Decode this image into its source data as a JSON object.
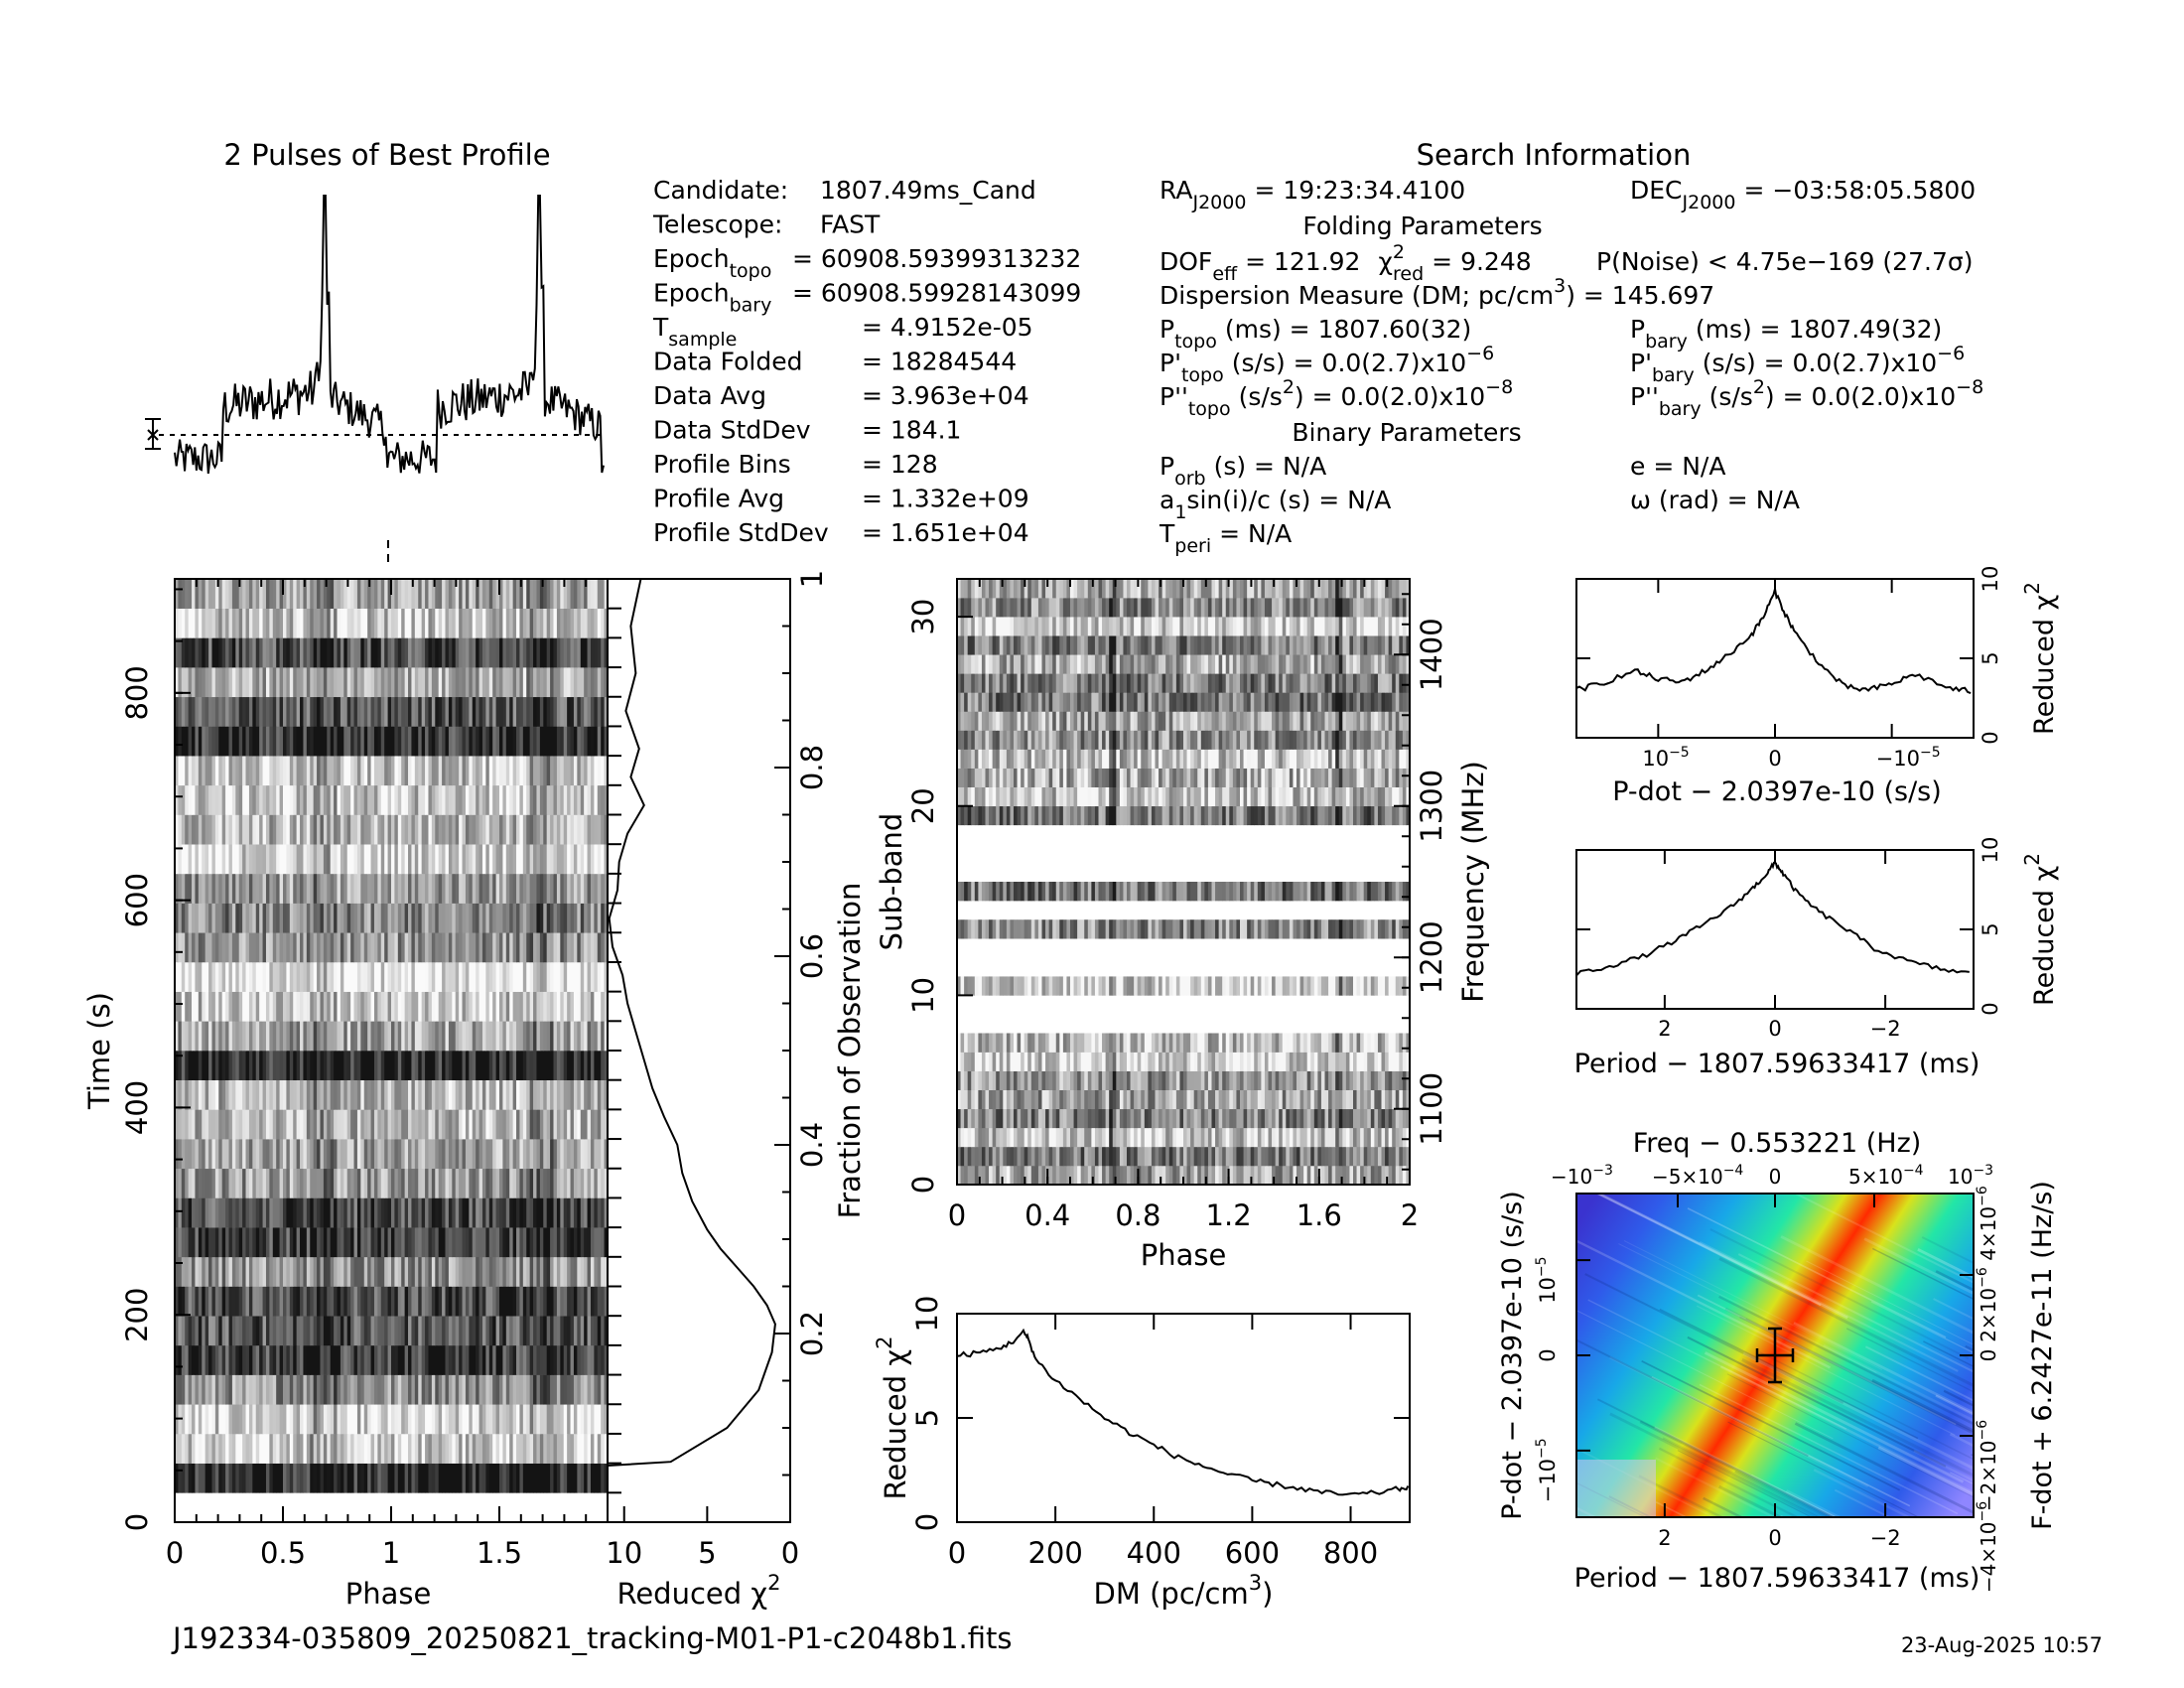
{
  "file_name": "J192334-035809_20250821_tracking-M01-P1-c2048b1.fits",
  "date_stamp": "23-Aug-2025 10:57",
  "colors": {
    "ink": "#000000",
    "background": "#ffffff"
  },
  "profile_panel": {
    "title": "2 Pulses of Best Profile"
  },
  "search_info": {
    "title": "Search Information",
    "left": [
      {
        "label": "Candidate:",
        "value": "1807.49ms_Cand"
      },
      {
        "label": "Telescope:",
        "value": "FAST"
      },
      {
        "label": "Epoch",
        "sub": "topo",
        "value": "= 60908.59399313232"
      },
      {
        "label": "Epoch",
        "sub": "bary",
        "value": "= 60908.59928143099"
      },
      {
        "label": "T",
        "sub": "sample",
        "value": "=   4.9152e-05"
      },
      {
        "label": "Data Folded",
        "value": "=   18284544"
      },
      {
        "label": "Data Avg",
        "value": "=   3.963e+04"
      },
      {
        "label": "Data StdDev",
        "value": "=   184.1"
      },
      {
        "label": "Profile Bins",
        "value": "=   128"
      },
      {
        "label": "Profile Avg",
        "value": "=   1.332e+09"
      },
      {
        "label": "Profile StdDev",
        "value": "=   1.651e+04"
      }
    ],
    "ra": "RA",
    "ra_sub": "J2000",
    "ra_value": "= 19:23:34.4100",
    "dec": "DEC",
    "dec_sub": "J2000",
    "dec_value": "= −03:58:05.5800",
    "folding_title": "Folding Parameters",
    "dof": "DOF",
    "dof_sub": "eff",
    "dof_value": "= 121.92",
    "chi": "χ",
    "chi_sup": "2",
    "chi_sub": "red",
    "chi_value": "= 9.248",
    "p_noise": "P(Noise) < 4.75e−169   (27.7σ)",
    "dm_line": "Dispersion Measure (DM; pc/cm",
    "dm_sup": "3",
    "dm_value": ") = 145.697",
    "p_topo": "P",
    "p_topo_sub": "topo",
    "p_topo_value": "(ms) =  1807.60(32)",
    "pd_topo": "P'",
    "pd_topo_sub": "topo",
    "pd_topo_value": "(s/s) = 0.0(2.7)x10",
    "pd_topo_exp": "−6",
    "pdd_topo": "P''",
    "pdd_topo_sub": "topo",
    "pdd_topo_value": "(s/s",
    "pdd_topo_sup": "2",
    "pdd_topo_value2": ") = 0.0(2.0)x10",
    "pdd_topo_exp": "−8",
    "p_bary": "P",
    "p_bary_sub": "bary",
    "p_bary_value": "(ms) =  1807.49(32)",
    "pd_bary": "P'",
    "pd_bary_sub": "bary",
    "pd_bary_value": "(s/s) = 0.0(2.7)x10",
    "pd_bary_exp": "−6",
    "pdd_bary": "P''",
    "pdd_bary_sub": "bary",
    "pdd_bary_value": "(s/s",
    "pdd_bary_sup": "2",
    "pdd_bary_value2": ") = 0.0(2.0)x10",
    "pdd_bary_exp": "−8",
    "binary_title": "Binary Parameters",
    "porb": "P",
    "porb_sub": "orb",
    "porb_value": "(s) = N/A",
    "a1": "a",
    "a1_sub": "1",
    "a1_value": "sin(i)/c (s) = N/A",
    "tperi": "T",
    "tperi_sub": "peri",
    "tperi_value": "= N/A",
    "ecc": "e = N/A",
    "omega": "ω (rad) = N/A"
  },
  "chart_data": [
    {
      "id": "profile",
      "type": "line",
      "title": "2 Pulses of Best Profile",
      "xlim": [
        0,
        2
      ],
      "ylim": [
        0,
        1
      ],
      "pulse_peaks_phase": [
        0.7,
        1.7
      ],
      "pulse_peak_level": 1.0,
      "baseline_level": 0.21,
      "offpulse_level": 0.12,
      "errorbar": true
    },
    {
      "id": "time-phase",
      "type": "heatmap",
      "xlabel": "Phase",
      "ylabel": "Time (s)",
      "xlim": [
        0,
        2
      ],
      "ylim": [
        0,
        910
      ],
      "x_ticks": [
        "0",
        "0.5",
        "1",
        "1.5"
      ],
      "y_ticks": [
        "0",
        "200",
        "400",
        "600",
        "800"
      ],
      "colormap": "grayscale",
      "n_intervals": 32
    },
    {
      "id": "chi-vs-time",
      "type": "line",
      "xlabel": "Reduced χ",
      "xlabel_sup": "2",
      "ylabel": "Fraction of Observation",
      "xlim": [
        11,
        0
      ],
      "ylim": [
        0,
        1
      ],
      "x_ticks": [
        "10",
        "5",
        "0"
      ],
      "y_ticks": [
        "0.2",
        "0.4",
        "0.6",
        "0.8",
        "1"
      ],
      "x": [
        11,
        7.2,
        3.8,
        1.9,
        1.1,
        0.9,
        1.4,
        2.2,
        3.2,
        4.2,
        5.0,
        5.9,
        6.5,
        6.8,
        7.6,
        8.3,
        8.8,
        9.3,
        9.8,
        10.1,
        10.7,
        10.9,
        10.4,
        10.3,
        9.8,
        8.8,
        9.6,
        9.1,
        9.9,
        9.3,
        9.6,
        9.0
      ],
      "y": [
        0.06,
        0.064,
        0.1,
        0.14,
        0.18,
        0.21,
        0.23,
        0.25,
        0.27,
        0.29,
        0.31,
        0.34,
        0.37,
        0.4,
        0.43,
        0.46,
        0.49,
        0.52,
        0.55,
        0.58,
        0.61,
        0.64,
        0.67,
        0.7,
        0.73,
        0.76,
        0.79,
        0.82,
        0.86,
        0.9,
        0.95,
        1.0
      ]
    },
    {
      "id": "subband-phase",
      "type": "heatmap",
      "xlabel": "Phase",
      "ylabel": "Sub-band",
      "ylabel_right": "Frequency (MHz)",
      "xlim": [
        0,
        2
      ],
      "ylim": [
        0,
        32
      ],
      "freq_lim": [
        1050,
        1450
      ],
      "x_ticks": [
        "0",
        "0.4",
        "0.8",
        "1.2",
        "1.6",
        "2"
      ],
      "y_ticks": [
        "0",
        "10",
        "20",
        "30"
      ],
      "freq_ticks": [
        "1100",
        "1200",
        "1300",
        "1400"
      ],
      "colormap": "grayscale",
      "masked_subbands": [
        8,
        9,
        11,
        12,
        14,
        16,
        17,
        18
      ]
    },
    {
      "id": "chi-vs-dm",
      "type": "line",
      "xlabel": "DM (pc/cm",
      "xlabel_sup": "3",
      "xlabel_end": ")",
      "ylabel": "Reduced χ",
      "ylabel_sup": "2",
      "xlim": [
        0,
        920
      ],
      "ylim": [
        0,
        10
      ],
      "x_ticks": [
        "0",
        "200",
        "400",
        "600",
        "800"
      ],
      "y_ticks": [
        "0",
        "5",
        "10"
      ],
      "x": [
        0,
        40,
        80,
        110,
        135,
        145,
        160,
        200,
        250,
        300,
        350,
        400,
        450,
        500,
        550,
        600,
        650,
        700,
        750,
        800,
        850,
        900,
        920
      ],
      "y": [
        8.0,
        8.1,
        8.3,
        8.6,
        9.1,
        8.8,
        7.8,
        6.8,
        5.9,
        5.0,
        4.3,
        3.7,
        3.1,
        2.7,
        2.3,
        2.0,
        1.8,
        1.6,
        1.4,
        1.3,
        1.4,
        1.6,
        1.7
      ]
    },
    {
      "id": "chi-vs-pdot",
      "type": "line",
      "xlabel": "P-dot − 2.0397e-10 (s/s)",
      "ylabel": "Reduced χ",
      "ylabel_sup": "2",
      "xlim": [
        1.7e-05,
        -1.7e-05
      ],
      "ylim": [
        0,
        10
      ],
      "x_ticks": [
        "10",
        "0",
        "−10"
      ],
      "x_tick_exp": "−5",
      "y_ticks": [
        "0",
        "5",
        "10"
      ],
      "x": [
        1.7e-05,
        1.5e-05,
        1.2e-05,
        1e-05,
        8e-06,
        6e-06,
        4e-06,
        2e-06,
        1e-06,
        0,
        -1e-06,
        -2e-06,
        -4e-06,
        -6e-06,
        -8e-06,
        -1e-05,
        -1.2e-05,
        -1.5e-05,
        -1.7e-05
      ],
      "y": [
        3.0,
        3.4,
        4.2,
        3.7,
        3.5,
        4.2,
        5.2,
        6.5,
        7.6,
        9.2,
        7.6,
        6.3,
        4.5,
        3.2,
        3.0,
        3.4,
        4.0,
        3.1,
        2.9
      ]
    },
    {
      "id": "chi-vs-period",
      "type": "line",
      "xlabel": "Period − 1807.59633417 (ms)",
      "ylabel": "Reduced χ",
      "ylabel_sup": "2",
      "xlim": [
        3.6,
        -3.6
      ],
      "ylim": [
        0,
        10
      ],
      "x_ticks": [
        "2",
        "0",
        "−2"
      ],
      "y_ticks": [
        "0",
        "5",
        "10"
      ],
      "x": [
        3.6,
        3.0,
        2.4,
        1.8,
        1.3,
        0.8,
        0.4,
        0.15,
        0,
        -0.15,
        -0.4,
        -0.8,
        -1.3,
        -1.8,
        -2.4,
        -3.0,
        -3.6
      ],
      "y": [
        2.2,
        2.7,
        3.3,
        4.3,
        5.3,
        6.4,
        7.6,
        8.5,
        9.2,
        8.5,
        7.3,
        6.1,
        5.0,
        3.8,
        3.0,
        2.5,
        2.2
      ]
    },
    {
      "id": "pdot-period-map",
      "type": "heatmap",
      "title": "Freq − 0.553221 (Hz)",
      "xlabel": "Period − 1807.59633417 (ms)",
      "ylabel": "P-dot − 2.0397e-10 (s/s)",
      "ylabel_right": "F-dot + 6.2427e-11 (Hz/s)",
      "xlim": [
        3.6,
        -3.6
      ],
      "ylim": [
        -1.7e-05,
        1.7e-05
      ],
      "x_ticks": [
        "2",
        "0",
        "−2"
      ],
      "y_ticks": [
        "−10",
        "0",
        "10"
      ],
      "y_tick_exp": "−5",
      "top_ticks": [
        "−10",
        "−5×10",
        "0",
        "5×10",
        "10"
      ],
      "top_tick_exp": [
        "−3",
        "−4",
        "",
        "−4",
        "−3"
      ],
      "right_ticks": [
        "−4×10",
        "−2×10",
        "0",
        "2×10",
        "4×10"
      ],
      "right_tick_exp": "−6",
      "colormap": "rainbow",
      "best_point": [
        0,
        0
      ]
    }
  ]
}
